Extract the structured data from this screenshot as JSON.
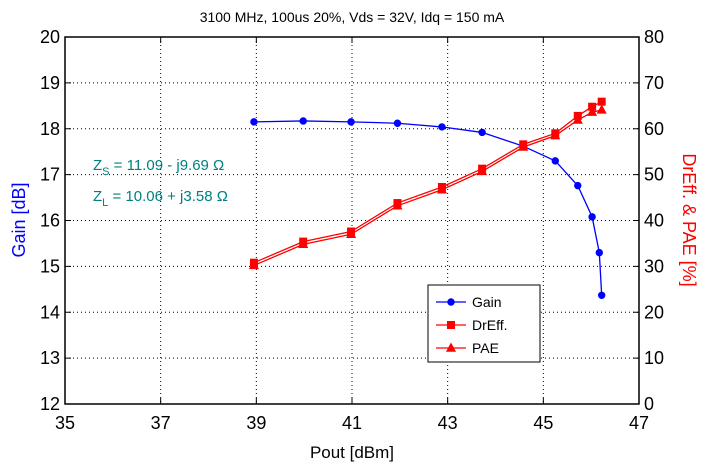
{
  "chart_data": {
    "type": "line",
    "title": "3100 MHz, 100us 20%, Vds = 32V, Idq = 150 mA",
    "xlabel": "Pout [dBm]",
    "ylabel_left": "Gain [dB]",
    "ylabel_right": "DrEff. & PAE [%]",
    "xlim": [
      35,
      47
    ],
    "ylim_left": [
      12,
      20
    ],
    "ylim_right": [
      0,
      80
    ],
    "x_ticks": [
      "35",
      "37",
      "39",
      "41",
      "43",
      "45",
      "47"
    ],
    "y_ticks_left": [
      "12",
      "13",
      "14",
      "15",
      "16",
      "17",
      "18",
      "19",
      "20"
    ],
    "y_ticks_right": [
      "0",
      "10",
      "20",
      "30",
      "40",
      "50",
      "60",
      "70",
      "80"
    ],
    "grid": true,
    "legend_position": "lower-right",
    "series": [
      {
        "name": "Gain",
        "axis": "left",
        "color": "#0000ff",
        "marker": "circle",
        "x": [
          38.95,
          39.98,
          40.98,
          41.95,
          42.88,
          43.72,
          44.58,
          45.25,
          45.72,
          46.02,
          46.17,
          46.22
        ],
        "y": [
          18.15,
          18.17,
          18.15,
          18.12,
          18.04,
          17.92,
          17.62,
          17.3,
          16.76,
          16.08,
          15.3,
          14.37
        ]
      },
      {
        "name": "DrEff.",
        "axis": "right",
        "color": "#ff0000",
        "marker": "square",
        "x": [
          38.95,
          39.98,
          40.98,
          41.95,
          42.88,
          43.72,
          44.58,
          45.25,
          45.72,
          46.02,
          46.22
        ],
        "y": [
          30.8,
          35.4,
          37.6,
          43.8,
          47.3,
          51.3,
          56.6,
          59.0,
          62.8,
          64.8,
          65.9
        ]
      },
      {
        "name": "PAE",
        "axis": "right",
        "color": "#ff0000",
        "marker": "triangle",
        "x": [
          38.95,
          39.98,
          40.98,
          41.95,
          42.88,
          43.72,
          44.58,
          45.25,
          45.72,
          46.02,
          46.22
        ],
        "y": [
          30.2,
          34.8,
          37.0,
          43.2,
          46.7,
          50.7,
          56.0,
          58.5,
          61.9,
          63.6,
          64.1
        ]
      }
    ],
    "annotations": [
      {
        "main": "Z",
        "sub": "S",
        "rest": " = 11.09 - j9.69  Ω",
        "color": "#008080"
      },
      {
        "main": "Z",
        "sub": "L",
        "rest": " = 10.06 + j3.58  Ω",
        "color": "#008080"
      }
    ]
  }
}
